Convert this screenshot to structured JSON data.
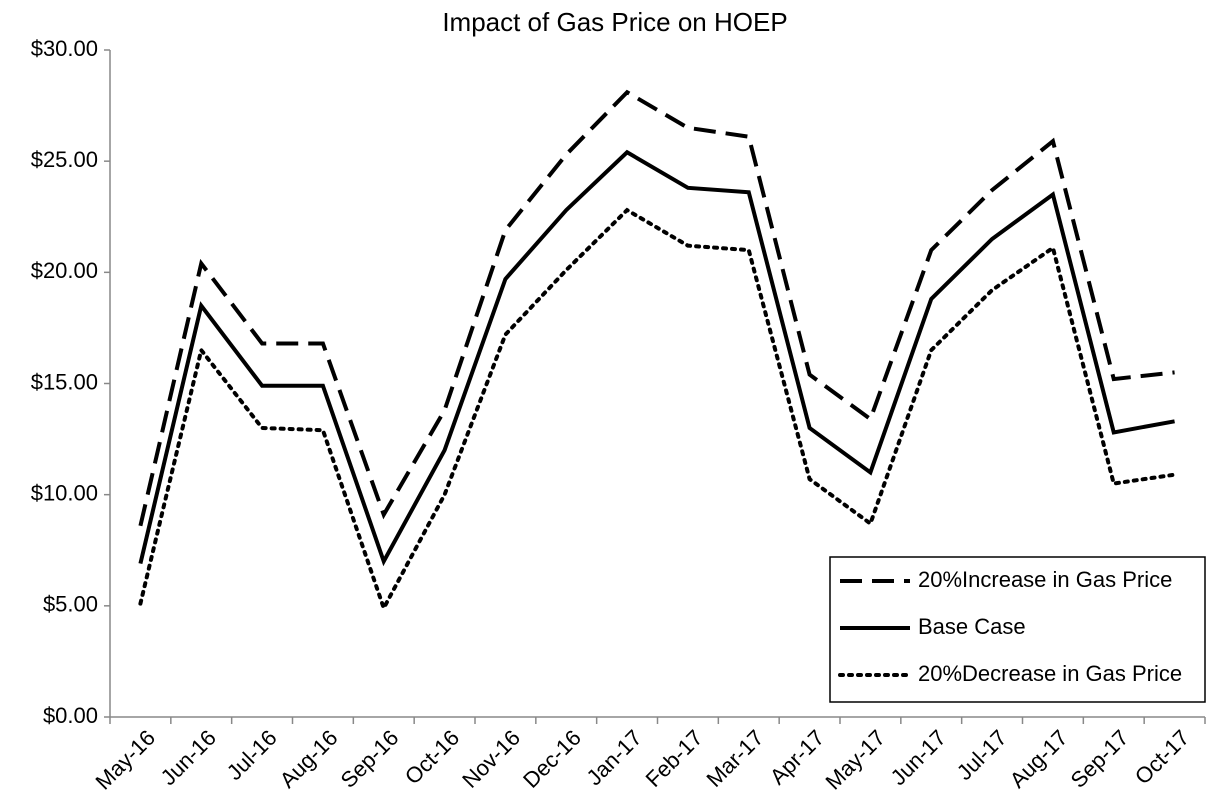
{
  "chart_data": {
    "type": "line",
    "title": "Impact of Gas Price on HOEP",
    "categories": [
      "May-16",
      "Jun-16",
      "Jul-16",
      "Aug-16",
      "Sep-16",
      "Oct-16",
      "Nov-16",
      "Dec-16",
      "Jan-17",
      "Feb-17",
      "Mar-17",
      "Apr-17",
      "May-17",
      "Jun-17",
      "Jul-17",
      "Aug-17",
      "Sep-17",
      "Oct-17"
    ],
    "series": [
      {
        "name": "20%Increase in Gas Price",
        "color": "#000000",
        "line_style": "dashed",
        "values": [
          8.6,
          20.4,
          16.8,
          16.8,
          9.1,
          13.8,
          21.9,
          25.3,
          28.1,
          26.5,
          26.1,
          15.4,
          13.4,
          21.0,
          23.7,
          25.9,
          15.2,
          15.5
        ]
      },
      {
        "name": "Base Case",
        "color": "#000000",
        "line_style": "solid",
        "values": [
          6.9,
          18.5,
          14.9,
          14.9,
          7.0,
          12.0,
          19.7,
          22.8,
          25.4,
          23.8,
          23.6,
          13.0,
          11.0,
          18.8,
          21.5,
          23.5,
          12.8,
          13.3
        ]
      },
      {
        "name": "20%Decrease in Gas Price",
        "color": "#000000",
        "line_style": "dotted",
        "values": [
          5.1,
          16.5,
          13.0,
          12.9,
          4.9,
          10.0,
          17.2,
          20.1,
          22.8,
          21.2,
          21.0,
          10.7,
          8.7,
          16.5,
          19.2,
          21.1,
          10.5,
          10.9
        ]
      }
    ],
    "ylim": [
      0,
      30
    ],
    "yticks": [
      {
        "value": 0,
        "label": "$0.00"
      },
      {
        "value": 5,
        "label": "$5.00"
      },
      {
        "value": 10,
        "label": "$10.00"
      },
      {
        "value": 15,
        "label": "$15.00"
      },
      {
        "value": 20,
        "label": "$20.00"
      },
      {
        "value": 25,
        "label": "$25.00"
      },
      {
        "value": 30,
        "label": "$30.00"
      }
    ],
    "grid": false,
    "legend": "bottom-right"
  }
}
